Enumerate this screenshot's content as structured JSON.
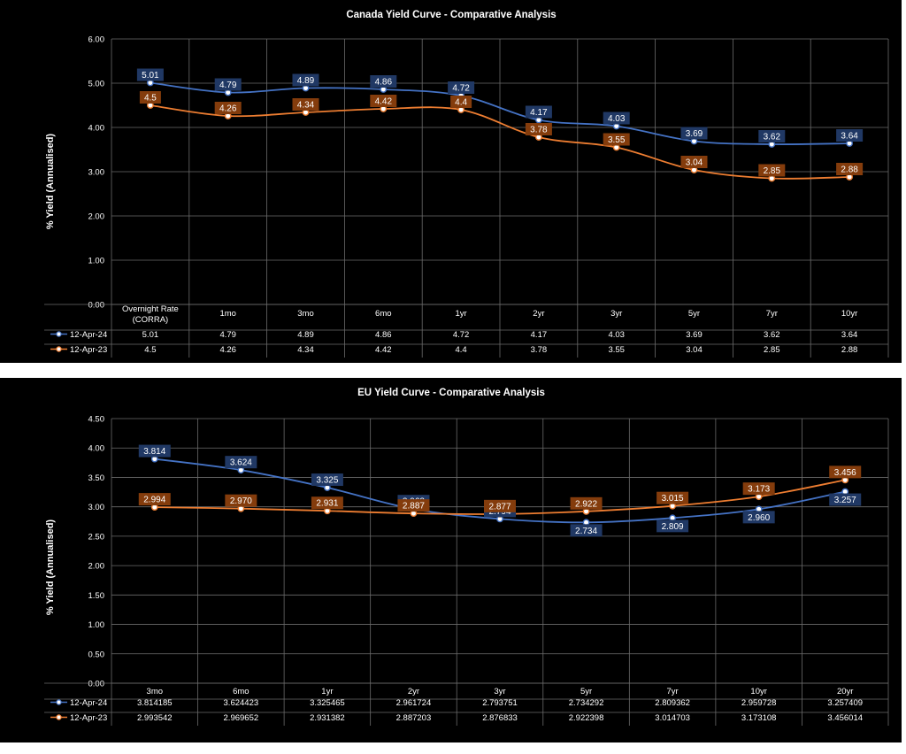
{
  "colors": {
    "series1": "#4472c4",
    "series2": "#ed7d31",
    "label1_bg": "#203864",
    "label2_bg": "#843c0c",
    "background": "#000000",
    "gridline": "#6b6b6b",
    "text": "#ffffff"
  },
  "chart_data": [
    {
      "type": "line",
      "title": "Canada Yield Curve - Comparative Analysis",
      "xlabel": "",
      "ylabel": "% Yield (Annualised)",
      "ylim": [
        0,
        6
      ],
      "yticks": [
        "0.00",
        "1.00",
        "2.00",
        "3.00",
        "4.00",
        "5.00",
        "6.00"
      ],
      "categories": [
        "Overnight Rate\n(CORRA)",
        "1mo",
        "3mo",
        "6mo",
        "1yr",
        "2yr",
        "3yr",
        "5yr",
        "7yr",
        "10yr"
      ],
      "grid": true,
      "legend": "data-table",
      "series": [
        {
          "name": "12-Apr-24",
          "values": [
            5.01,
            4.79,
            4.89,
            4.86,
            4.72,
            4.17,
            4.03,
            3.69,
            3.62,
            3.64
          ],
          "table_values": [
            "5.01",
            "4.79",
            "4.89",
            "4.86",
            "4.72",
            "4.17",
            "4.03",
            "3.69",
            "3.62",
            "3.64"
          ],
          "labels": [
            "5.01",
            "4.79",
            "4.89",
            "4.86",
            "4.72",
            "4.17",
            "4.03",
            "3.69",
            "3.62",
            "3.64"
          ]
        },
        {
          "name": "12-Apr-23",
          "values": [
            4.5,
            4.26,
            4.34,
            4.42,
            4.4,
            3.78,
            3.55,
            3.04,
            2.85,
            2.88
          ],
          "table_values": [
            "4.5",
            "4.26",
            "4.34",
            "4.42",
            "4.4",
            "3.78",
            "3.55",
            "3.04",
            "2.85",
            "2.88"
          ],
          "labels": [
            "4.5",
            "4.26",
            "4.34",
            "4.42",
            "4.4",
            "3.78",
            "3.55",
            "3.04",
            "2.85",
            "2.88"
          ]
        }
      ]
    },
    {
      "type": "line",
      "title": "EU Yield Curve - Comparative Analysis",
      "xlabel": "",
      "ylabel": "% Yield (Annualised)",
      "ylim": [
        0,
        4.5
      ],
      "yticks": [
        "0.00",
        "0.50",
        "1.00",
        "1.50",
        "2.00",
        "2.50",
        "3.00",
        "3.50",
        "4.00",
        "4.50"
      ],
      "categories": [
        "3mo",
        "6mo",
        "1yr",
        "2yr",
        "3yr",
        "5yr",
        "7yr",
        "10yr",
        "20yr"
      ],
      "grid": true,
      "legend": "data-table",
      "series": [
        {
          "name": "12-Apr-24",
          "values": [
            3.814185,
            3.624423,
            3.325465,
            2.961724,
            2.793751,
            2.734292,
            2.809362,
            2.959728,
            3.257409
          ],
          "table_values": [
            "3.814185",
            "3.624423",
            "3.325465",
            "2.961724",
            "2.793751",
            "2.734292",
            "2.809362",
            "2.959728",
            "3.257409"
          ],
          "labels": [
            "3.814",
            "3.624",
            "3.325",
            "2.962",
            "2.794",
            "2.734",
            "2.809",
            "2.960",
            "3.257"
          ]
        },
        {
          "name": "12-Apr-23",
          "values": [
            2.993542,
            2.969652,
            2.931382,
            2.887203,
            2.876833,
            2.922398,
            3.014703,
            3.173108,
            3.456014
          ],
          "table_values": [
            "2.993542",
            "2.969652",
            "2.931382",
            "2.887203",
            "2.876833",
            "2.922398",
            "3.014703",
            "3.173108",
            "3.456014"
          ],
          "labels": [
            "2.994",
            "2.970",
            "2.931",
            "2.887",
            "2.877",
            "2.922",
            "3.015",
            "3.173",
            "3.456"
          ]
        }
      ]
    }
  ]
}
